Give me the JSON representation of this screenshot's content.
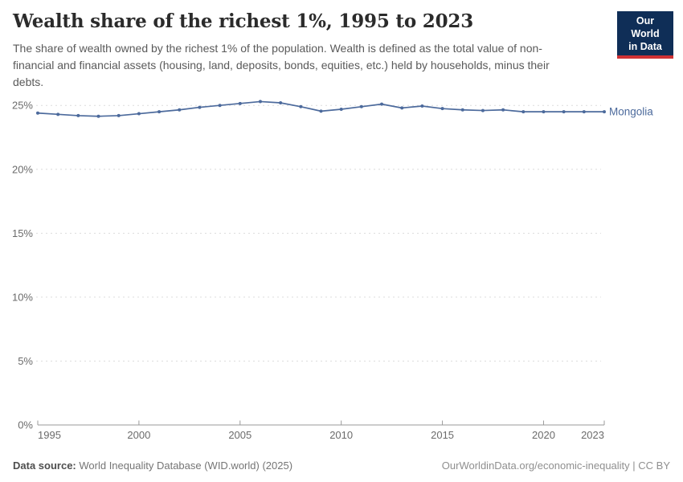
{
  "header": {
    "title": "Wealth share of the richest 1%, 1995 to 2023",
    "subtitle": "The share of wealth owned by the richest 1% of the population. Wealth is defined as the total value of non-financial and financial assets (housing, land, deposits, bonds, equities, etc.) held by households, minus their debts.",
    "logo": {
      "line1": "Our World",
      "line2": "in Data"
    }
  },
  "chart_data": {
    "type": "line",
    "title": "Wealth share of the richest 1%, 1995 to 2023",
    "xlabel": "",
    "ylabel": "",
    "x_range": [
      1995,
      2023
    ],
    "ylim": [
      0,
      25
    ],
    "yticks": [
      0,
      5,
      10,
      15,
      20,
      25
    ],
    "ytick_suffix": "%",
    "xticks": [
      1995,
      2000,
      2005,
      2010,
      2015,
      2020,
      2023
    ],
    "grid": "horizontal-dashed",
    "legend_position": "end-of-line",
    "x": [
      1995,
      1996,
      1997,
      1998,
      1999,
      2000,
      2001,
      2002,
      2003,
      2004,
      2005,
      2006,
      2007,
      2008,
      2009,
      2010,
      2011,
      2012,
      2013,
      2014,
      2015,
      2016,
      2017,
      2018,
      2019,
      2020,
      2021,
      2022,
      2023
    ],
    "series": [
      {
        "name": "Mongolia",
        "values": [
          24.4,
          24.3,
          24.2,
          24.15,
          24.2,
          24.35,
          24.5,
          24.65,
          24.85,
          25.0,
          25.15,
          25.3,
          25.2,
          24.9,
          24.55,
          24.7,
          24.9,
          25.1,
          24.8,
          24.95,
          24.75,
          24.65,
          24.6,
          24.65,
          24.5,
          24.5,
          24.5,
          24.5,
          24.5
        ]
      }
    ]
  },
  "footer": {
    "source_label": "Data source:",
    "source_text": "World Inequality Database (WID.world) (2025)",
    "credit": "OurWorldinData.org/economic-inequality | CC BY"
  },
  "colors": {
    "series_line": "#4C6A9C",
    "grid_line": "#dcdcdc",
    "axis_line": "#9a9a9a",
    "tick_label": "#6b6b6b",
    "logo_bg": "#0f2e57",
    "logo_red": "#cf3134"
  }
}
